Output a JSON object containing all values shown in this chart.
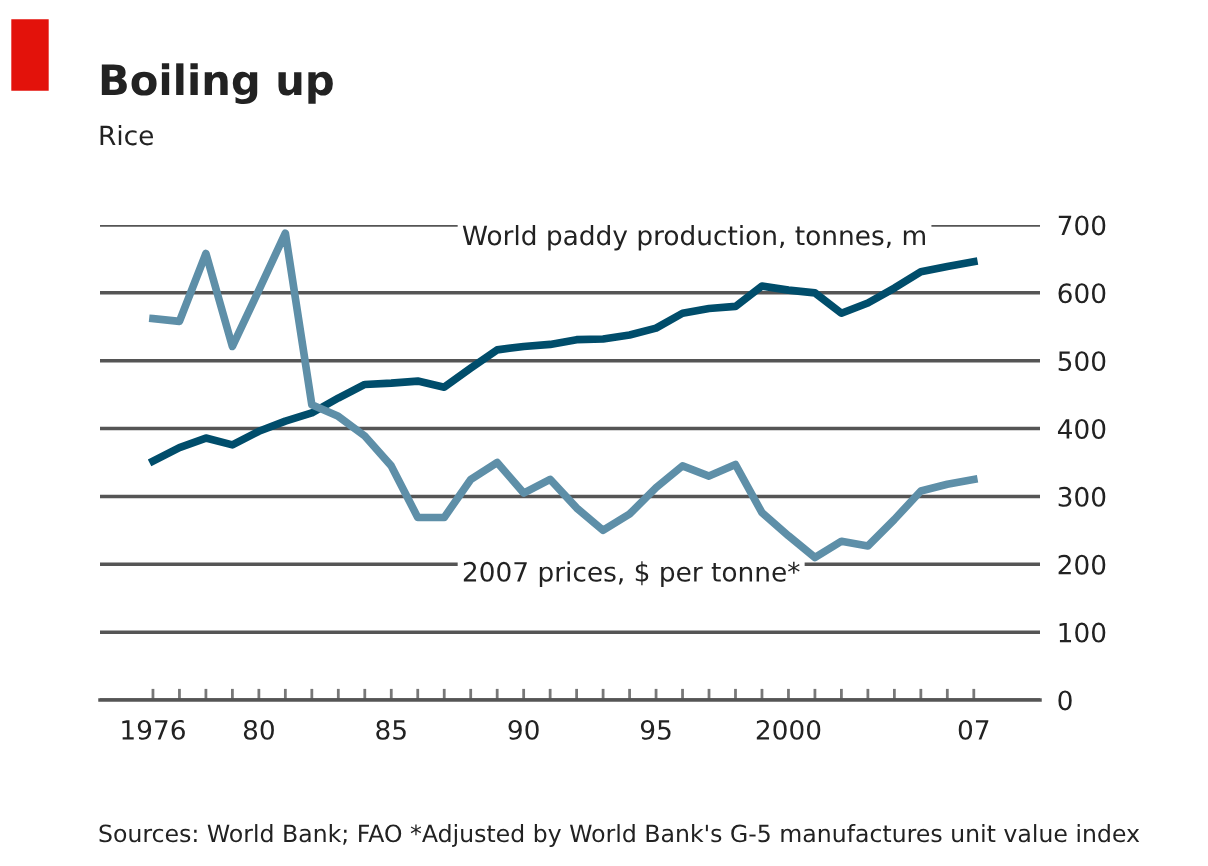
{
  "chart_data": {
    "type": "line",
    "title": "Boiling up",
    "subtitle": "Rice",
    "x": [
      1976,
      1977,
      1978,
      1979,
      1980,
      1981,
      1982,
      1983,
      1984,
      1985,
      1986,
      1987,
      1988,
      1989,
      1990,
      1991,
      1992,
      1993,
      1994,
      1995,
      1996,
      1997,
      1998,
      1999,
      2000,
      2001,
      2002,
      2003,
      2004,
      2005,
      2006,
      2007
    ],
    "series": [
      {
        "name": "World paddy production, tonnes, m",
        "color": "#004d6b",
        "values": [
          352,
          372,
          386,
          376,
          396,
          411,
          423,
          445,
          465,
          467,
          470,
          461,
          489,
          516,
          521,
          524,
          531,
          532,
          538,
          548,
          570,
          577,
          580,
          610,
          604,
          600,
          570,
          585,
          607,
          631,
          639,
          646
        ]
      },
      {
        "name": "2007 prices, $ per tonne*",
        "color": "#5e8fa8",
        "values": [
          562,
          558,
          658,
          521,
          604,
          688,
          435,
          418,
          389,
          345,
          269,
          269,
          325,
          350,
          305,
          325,
          283,
          250,
          274,
          313,
          345,
          330,
          347,
          276,
          242,
          210,
          234,
          227,
          266,
          308,
          318,
          325
        ]
      }
    ],
    "xlim": [
      1974,
      2009.5
    ],
    "xticks": [
      {
        "value": 1976,
        "label": "1976"
      },
      {
        "value": 1977,
        "label": null
      },
      {
        "value": 1978,
        "label": null
      },
      {
        "value": 1979,
        "label": null
      },
      {
        "value": 1980,
        "label": "80"
      },
      {
        "value": 1981,
        "label": null
      },
      {
        "value": 1982,
        "label": null
      },
      {
        "value": 1983,
        "label": null
      },
      {
        "value": 1984,
        "label": null
      },
      {
        "value": 1985,
        "label": "85"
      },
      {
        "value": 1986,
        "label": null
      },
      {
        "value": 1987,
        "label": null
      },
      {
        "value": 1988,
        "label": null
      },
      {
        "value": 1989,
        "label": null
      },
      {
        "value": 1990,
        "label": "90"
      },
      {
        "value": 1991,
        "label": null
      },
      {
        "value": 1992,
        "label": null
      },
      {
        "value": 1993,
        "label": null
      },
      {
        "value": 1994,
        "label": null
      },
      {
        "value": 1995,
        "label": "95"
      },
      {
        "value": 1996,
        "label": null
      },
      {
        "value": 1997,
        "label": null
      },
      {
        "value": 1998,
        "label": null
      },
      {
        "value": 1999,
        "label": null
      },
      {
        "value": 2000,
        "label": "2000"
      },
      {
        "value": 2001,
        "label": null
      },
      {
        "value": 2002,
        "label": null
      },
      {
        "value": 2003,
        "label": null
      },
      {
        "value": 2004,
        "label": null
      },
      {
        "value": 2005,
        "label": null
      },
      {
        "value": 2006,
        "label": null
      },
      {
        "value": 2007,
        "label": "07"
      }
    ],
    "ylim": [
      0,
      700
    ],
    "yticks": [
      0,
      100,
      200,
      300,
      400,
      500,
      600,
      700
    ],
    "grid": "y",
    "legend": false,
    "marker": "none",
    "line_style": "solid",
    "annotations": [
      "Sources: World Bank; FAO",
      "*Adjusted by World Bank's G-5 manufactures unit value index"
    ]
  }
}
